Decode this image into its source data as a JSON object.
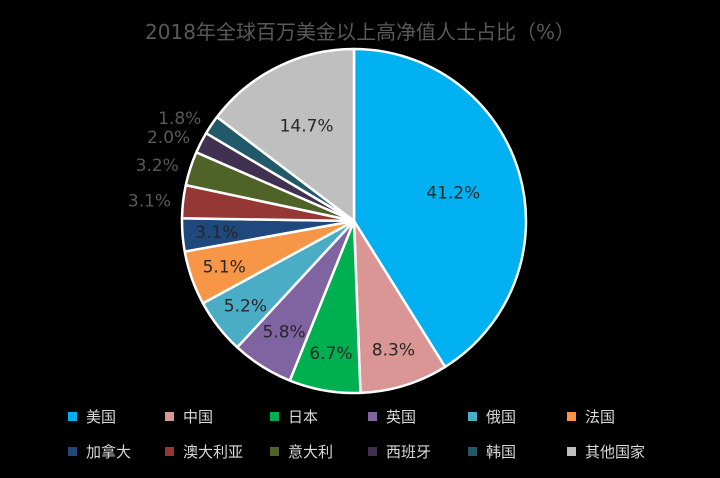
{
  "title": "2018年全球百万美金以上高净值人士占比（%）",
  "chart_data": {
    "type": "pie",
    "title": "2018年全球百万美金以上高净值人士占比（%）",
    "categories": [
      "美国",
      "中国",
      "日本",
      "英国",
      "俄国",
      "法国",
      "加拿大",
      "澳大利亚",
      "意大利",
      "西班牙",
      "韩国",
      "其他国家"
    ],
    "values": [
      41.2,
      8.3,
      6.7,
      5.8,
      5.2,
      5.1,
      3.1,
      3.1,
      3.2,
      2.0,
      1.8,
      14.7
    ],
    "data_labels": [
      "41.2%",
      "8.3%",
      "6.7%",
      "5.8%",
      "5.2%",
      "5.1%",
      "3.1%",
      "3.1%",
      "3.2%",
      "2.0%",
      "1.8%",
      "14.7%"
    ],
    "colors": [
      "#00B0F0",
      "#DA9694",
      "#00B050",
      "#8064A2",
      "#4BACC6",
      "#F79646",
      "#1F497D",
      "#953735",
      "#4F6228",
      "#403151",
      "#215968",
      "#BFBFBF"
    ],
    "legend_position": "bottom",
    "start_angle_deg": 0,
    "direction": "clockwise"
  }
}
